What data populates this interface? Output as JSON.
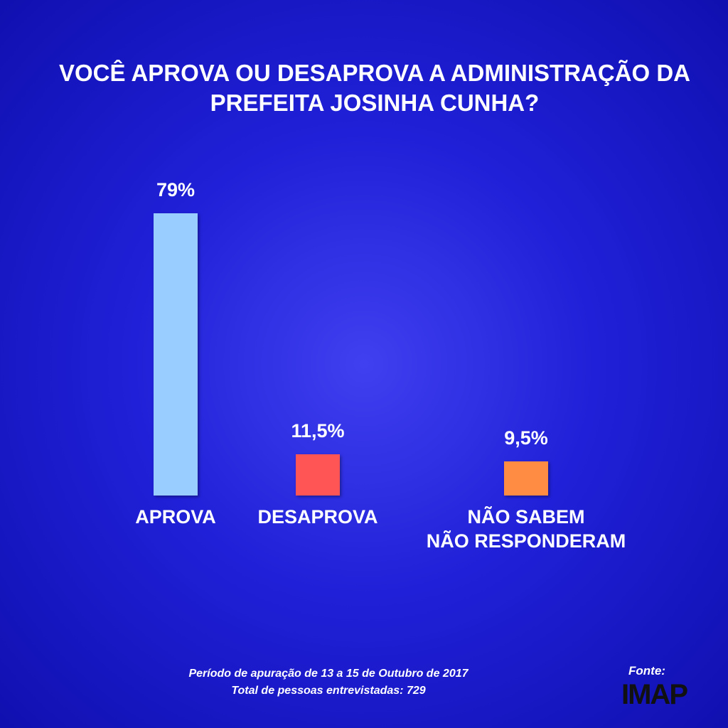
{
  "chart_data": {
    "type": "bar",
    "title": "VOCÊ APROVA OU DESAPROVA A ADMINISTRAÇÃO DA\nPREFEITA JOSINHA CUNHA?",
    "categories": [
      "APROVA",
      "DESAPROVA",
      "NÃO SABEM\nNÃO RESPONDERAM"
    ],
    "values": [
      79,
      11.5,
      9.5
    ],
    "value_labels": [
      "79%",
      "11,5%",
      "9,5%"
    ],
    "colors": [
      "#99ccff",
      "#ff5555",
      "#ff8c42"
    ],
    "footnote": "Período de apuração de 13 a 15 de Outubro de 2017\nTotal de pessoas entrevistadas: 729",
    "source_label": "Fonte:",
    "source": "IMAP"
  }
}
